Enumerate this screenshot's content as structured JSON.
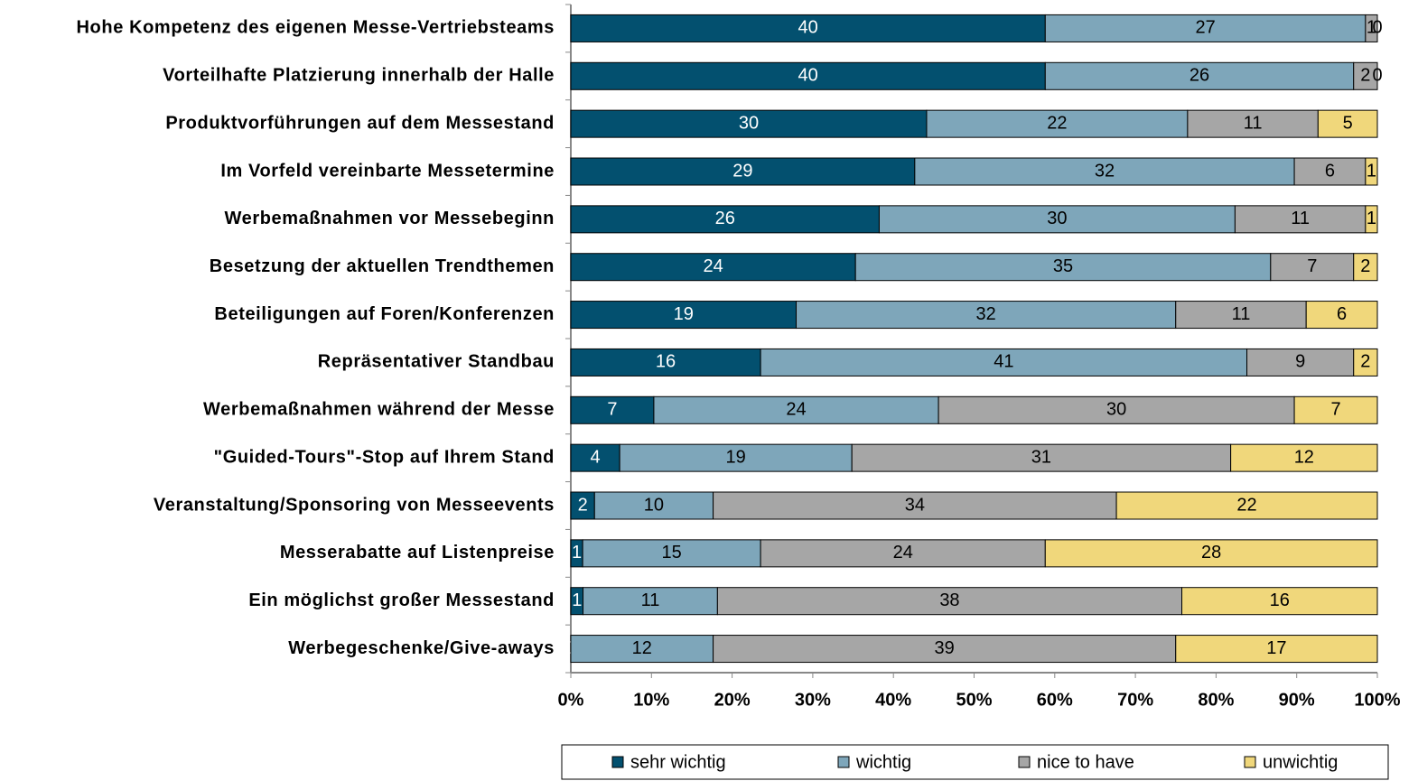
{
  "chart_data": {
    "type": "bar",
    "orientation": "horizontal",
    "stacking": "percent",
    "categories": [
      "Hohe Kompetenz des eigenen Messe-Vertriebsteams",
      "Vorteilhafte Platzierung innerhalb der Halle",
      "Produktvorführungen auf dem Messestand",
      "Im Vorfeld vereinbarte Messetermine",
      "Werbemaßnahmen vor Messebeginn",
      "Besetzung der aktuellen Trendthemen",
      "Beteiligungen auf Foren/Konferenzen",
      "Repräsentativer Standbau",
      "Werbemaßnahmen während der Messe",
      "\"Guided-Tours\"-Stop auf Ihrem Stand",
      "Veranstaltung/Sponsoring von Messeevents",
      "Messerabatte auf Listenpreise",
      "Ein möglichst großer Messestand",
      "Werbegeschenke/Give-aways"
    ],
    "series": [
      {
        "name": "sehr wichtig",
        "color": "#03506f",
        "values": [
          40,
          40,
          30,
          29,
          26,
          24,
          19,
          16,
          7,
          4,
          2,
          1,
          1,
          0
        ]
      },
      {
        "name": "wichtig",
        "color": "#7ea6ba",
        "values": [
          27,
          26,
          22,
          32,
          30,
          35,
          32,
          41,
          24,
          19,
          10,
          15,
          11,
          12
        ]
      },
      {
        "name": "nice to have",
        "color": "#a6a6a6",
        "values": [
          1,
          2,
          11,
          6,
          11,
          7,
          11,
          9,
          30,
          31,
          34,
          24,
          38,
          39
        ]
      },
      {
        "name": "unwichtig",
        "color": "#f0d77b",
        "values": [
          0,
          0,
          5,
          1,
          1,
          2,
          6,
          2,
          7,
          12,
          22,
          28,
          16,
          17
        ]
      }
    ],
    "xlim": [
      0,
      100
    ],
    "xticks": [
      {
        "value": 0,
        "label": "0%"
      },
      {
        "value": 10,
        "label": "10%"
      },
      {
        "value": 20,
        "label": "20%"
      },
      {
        "value": 30,
        "label": "30%"
      },
      {
        "value": 40,
        "label": "40%"
      },
      {
        "value": 50,
        "label": "50%"
      },
      {
        "value": 60,
        "label": "60%"
      },
      {
        "value": 70,
        "label": "70%"
      },
      {
        "value": 80,
        "label": "80%"
      },
      {
        "value": 90,
        "label": "90%"
      },
      {
        "value": 100,
        "label": "100%"
      }
    ],
    "legend": "bottom"
  }
}
